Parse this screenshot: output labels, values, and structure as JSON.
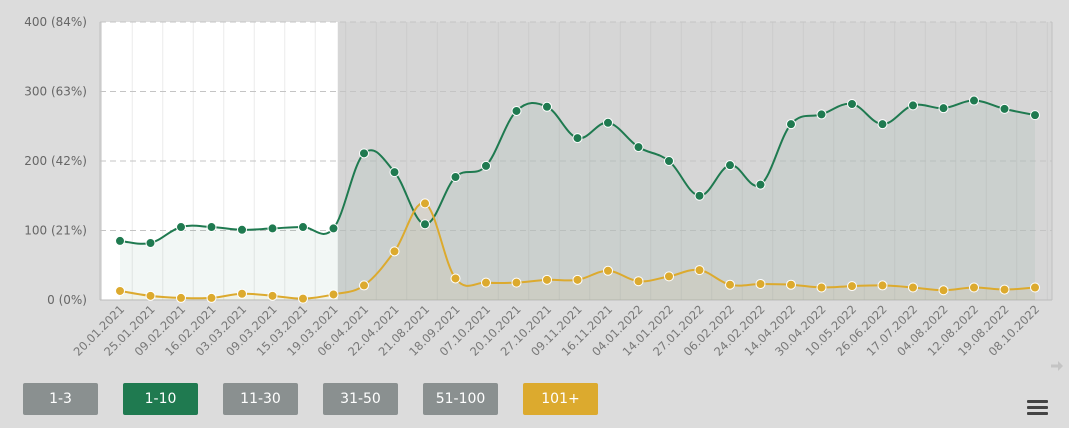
{
  "chart_data": {
    "type": "line",
    "y_ticks": [
      {
        "value": 0,
        "label": "0 (0%)"
      },
      {
        "value": 100,
        "label": "100 (21%)"
      },
      {
        "value": 200,
        "label": "200 (42%)"
      },
      {
        "value": 300,
        "label": "300 (63%)"
      },
      {
        "value": 400,
        "label": "400 (84%)"
      }
    ],
    "ylim": [
      0,
      400
    ],
    "x": [
      "20.01.2021",
      "25.01.2021",
      "09.02.2021",
      "16.02.2021",
      "03.03.2021",
      "09.03.2021",
      "15.03.2021",
      "19.03.2021",
      "06.04.2021",
      "22.04.2021",
      "21.08.2021",
      "18.09.2021",
      "07.10.2021",
      "20.10.2021",
      "27.10.2021",
      "09.11.2021",
      "16.11.2021",
      "04.01.2022",
      "14.01.2022",
      "27.01.2022",
      "06.02.2022",
      "24.02.2022",
      "14.04.2022",
      "30.04.2022",
      "10.05.2022",
      "26.06.2022",
      "17.07.2022",
      "04.08.2022",
      "12.08.2022",
      "19.08.2022",
      "08.10.2022"
    ],
    "highlight_range": [
      "20.01.2021",
      "19.03.2021"
    ],
    "grid": true,
    "series": [
      {
        "name": "1-10",
        "color": "#1f7a50",
        "values": [
          85,
          82,
          105,
          105,
          101,
          103,
          105,
          103,
          211,
          184,
          109,
          177,
          193,
          272,
          278,
          233,
          255,
          220,
          200,
          150,
          194,
          166,
          253,
          267,
          282,
          253,
          280,
          276,
          287,
          275,
          266
        ]
      },
      {
        "name": "101+",
        "color": "#dcaa2e",
        "values": [
          13,
          6,
          3,
          3,
          9,
          6,
          2,
          8,
          21,
          70,
          139,
          31,
          25,
          25,
          29,
          29,
          42,
          27,
          34,
          43,
          22,
          23,
          22,
          18,
          20,
          21,
          18,
          14,
          18,
          15,
          18
        ]
      }
    ]
  },
  "filters": [
    {
      "label": "1-3",
      "color": "#8a9090",
      "active": false
    },
    {
      "label": "1-10",
      "color": "#1f7a50",
      "active": true
    },
    {
      "label": "11-30",
      "color": "#8a9090",
      "active": false
    },
    {
      "label": "31-50",
      "color": "#8a9090",
      "active": false
    },
    {
      "label": "51-100",
      "color": "#8a9090",
      "active": false
    },
    {
      "label": "101+",
      "color": "#dcaa2e",
      "active": true
    }
  ],
  "icons": {
    "menu": "hamburger-menu-icon",
    "scroll": "arrow-right-icon"
  }
}
